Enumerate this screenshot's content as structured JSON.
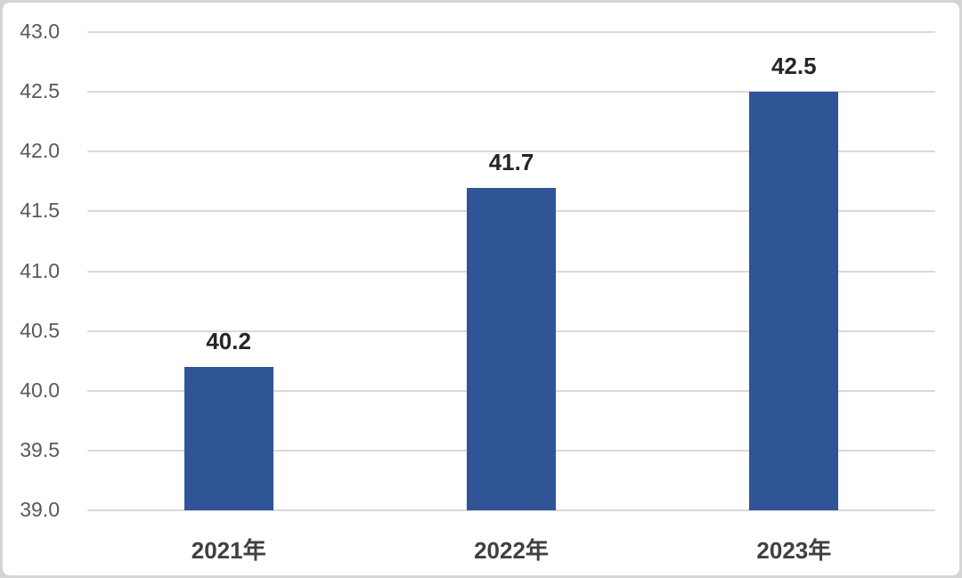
{
  "chart_data": {
    "type": "bar",
    "title": "",
    "xlabel": "",
    "ylabel": "",
    "categories": [
      "2021年",
      "2022年",
      "2023年"
    ],
    "values": [
      40.2,
      41.7,
      42.5
    ],
    "data_labels": [
      "40.2",
      "41.7",
      "42.5"
    ],
    "ylim": [
      39.0,
      43.0
    ],
    "ytick_step": 0.5,
    "ytick_labels": [
      "39.0",
      "39.5",
      "40.0",
      "40.5",
      "41.0",
      "41.5",
      "42.0",
      "42.5",
      "43.0"
    ],
    "grid": true,
    "legend": "none",
    "colors": {
      "bar": "#2F5597",
      "gridline": "#D9D9D9",
      "ytick_label": "#595959",
      "category_label": "#404040",
      "data_label": "#262626",
      "background": "#FFFFFF",
      "frame_border": "#D6D6D6"
    }
  }
}
